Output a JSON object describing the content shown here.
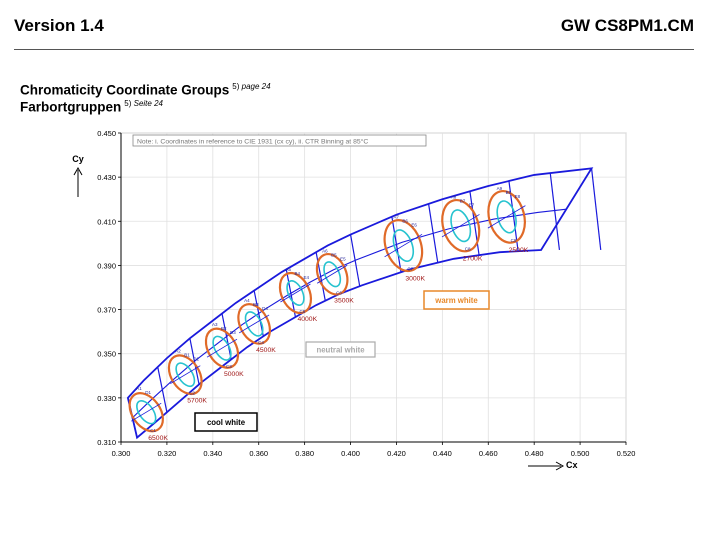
{
  "header": {
    "version": "Version 1.4",
    "part_number": "GW CS8PM1.CM"
  },
  "section": {
    "title_en": "Chromaticity Coordinate Groups",
    "title_en_ref": "5)",
    "title_en_page": "page 24",
    "title_de": "Farbortgruppen",
    "title_de_ref": "5)",
    "title_de_page": "Seite 24"
  },
  "colors": {
    "bin_outline": "#1a1adc",
    "ellipse_outer": "#e06a28",
    "ellipse_inner": "#27c3cf",
    "cct_label": "#a01818",
    "grid": "#e0e0e0"
  },
  "chart_data": {
    "type": "scatter",
    "note": "Note: i. Coordinates in reference to CIE 1931 (cx cy), ii. CTR Binning at 85°C",
    "xlabel": "Cx",
    "ylabel": "Cy",
    "xlim": [
      0.3,
      0.52
    ],
    "ylim": [
      0.31,
      0.45
    ],
    "grid": true,
    "x_ticks": [
      "0.300",
      "0.320",
      "0.340",
      "0.360",
      "0.380",
      "0.400",
      "0.420",
      "0.440",
      "0.460",
      "0.480",
      "0.500",
      "0.520"
    ],
    "y_ticks": [
      "0.310",
      "0.330",
      "0.350",
      "0.370",
      "0.390",
      "0.410",
      "0.430",
      "0.450"
    ],
    "boundary_top": [
      [
        0.303,
        0.33
      ],
      [
        0.31,
        0.338
      ],
      [
        0.32,
        0.348
      ],
      [
        0.33,
        0.357
      ],
      [
        0.34,
        0.365
      ],
      [
        0.35,
        0.373
      ],
      [
        0.36,
        0.38
      ],
      [
        0.37,
        0.387
      ],
      [
        0.38,
        0.393
      ],
      [
        0.39,
        0.399
      ],
      [
        0.4,
        0.404
      ],
      [
        0.42,
        0.413
      ],
      [
        0.44,
        0.42
      ],
      [
        0.46,
        0.426
      ],
      [
        0.48,
        0.431
      ],
      [
        0.505,
        0.434
      ]
    ],
    "boundary_bottom": [
      [
        0.307,
        0.312
      ],
      [
        0.315,
        0.319
      ],
      [
        0.325,
        0.328
      ],
      [
        0.335,
        0.337
      ],
      [
        0.345,
        0.345
      ],
      [
        0.355,
        0.353
      ],
      [
        0.365,
        0.36
      ],
      [
        0.375,
        0.366
      ],
      [
        0.385,
        0.372
      ],
      [
        0.395,
        0.377
      ],
      [
        0.405,
        0.381
      ],
      [
        0.425,
        0.388
      ],
      [
        0.445,
        0.393
      ],
      [
        0.465,
        0.396
      ],
      [
        0.483,
        0.397
      ]
    ],
    "bins": [
      {
        "labels": [
          "A1",
          "D1"
        ],
        "outer": "C1",
        "x": 0.311,
        "y": 0.3235,
        "cct": "6500K"
      },
      {
        "labels": [
          "A2",
          "B1",
          "D2"
        ],
        "outer": "C2",
        "x": 0.328,
        "y": 0.3405,
        "cct": "5700K"
      },
      {
        "labels": [
          "A3",
          "B2",
          "D3"
        ],
        "outer": "C3",
        "x": 0.344,
        "y": 0.3525,
        "cct": "5000K"
      },
      {
        "labels": [
          "A4",
          "B3",
          "D4"
        ],
        "outer": "C4",
        "x": 0.358,
        "y": 0.3635,
        "cct": "4500K"
      },
      {
        "labels": [
          "A5",
          "B4",
          "E4"
        ],
        "outer": "C5",
        "x": 0.376,
        "y": 0.3775,
        "cct": "4000K"
      },
      {
        "labels": [
          "A6",
          "B5",
          "E5"
        ],
        "outer": "C6",
        "x": 0.392,
        "y": 0.386,
        "cct": "3500K"
      },
      {
        "labels": [
          "A7",
          "B6",
          "E6"
        ],
        "outer": "C7",
        "x": 0.423,
        "y": 0.399,
        "cct": "3000K"
      },
      {
        "labels": [
          "A8",
          "B7",
          "E7"
        ],
        "outer": "C8",
        "x": 0.448,
        "y": 0.408,
        "cct": "2700K"
      },
      {
        "labels": [
          "A9",
          "B8",
          "E8"
        ],
        "outer": "C9",
        "x": 0.468,
        "y": 0.412,
        "cct": "2500K"
      }
    ],
    "dividers_x": [
      0.303,
      0.316,
      0.33,
      0.344,
      0.358,
      0.372,
      0.385,
      0.4,
      0.418,
      0.434,
      0.452,
      0.469,
      0.487,
      0.505
    ],
    "annotations": [
      {
        "text": "cool white",
        "kind": "cool"
      },
      {
        "text": "neutral white",
        "kind": "neutral"
      },
      {
        "text": "warm white",
        "kind": "warm"
      }
    ],
    "tiny_bin_labels": [
      "B9",
      "A9",
      "B8",
      "A8",
      "B7",
      "A7",
      "B6",
      "A6",
      "B5",
      "A5",
      "B4",
      "A4",
      "B3",
      "A3",
      "B2",
      "A2",
      "B1",
      "A1",
      "D1",
      "C1",
      "D2",
      "C2",
      "D3",
      "C3",
      "D4",
      "C4",
      "D5",
      "C5",
      "D6",
      "C6",
      "D7",
      "C7",
      "D8",
      "C8",
      "D9",
      "C9"
    ]
  }
}
